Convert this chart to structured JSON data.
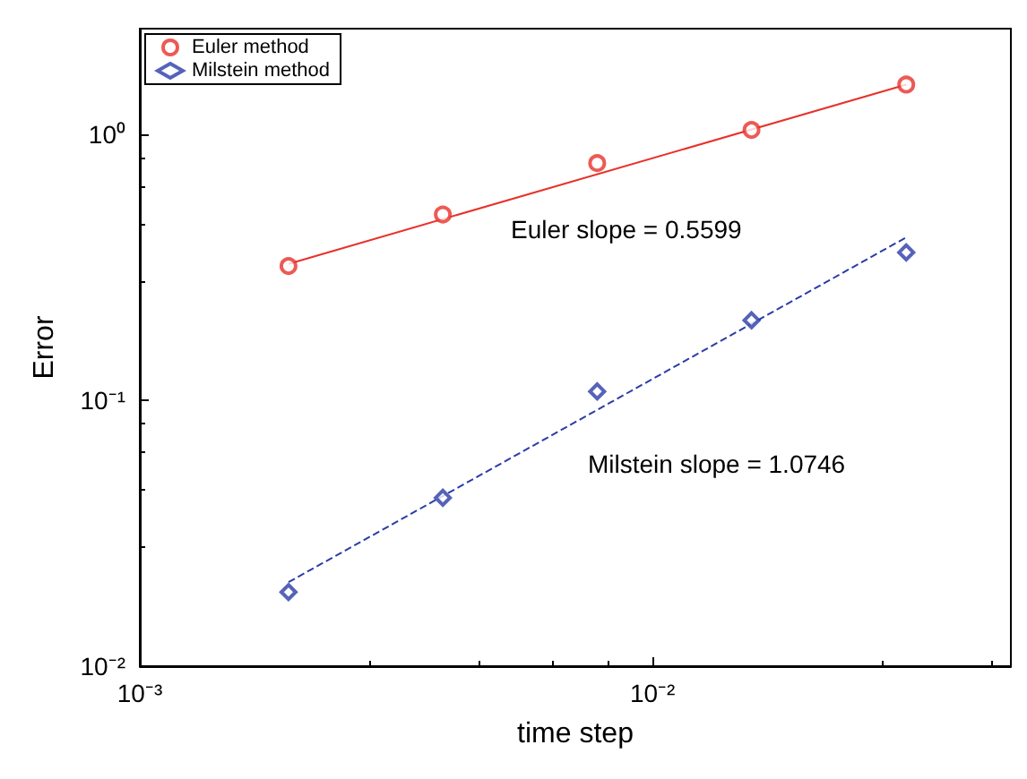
{
  "chart_data": {
    "type": "scatter",
    "xlabel": "time step",
    "ylabel": "Error",
    "log": "xy",
    "grid": false,
    "legend": "top left",
    "xlim": [
      0.001,
      0.05
    ],
    "xticks": [
      {
        "value": 0.001,
        "label": "10⁻³"
      },
      {
        "value": 0.01,
        "label": "10⁻²"
      }
    ],
    "ylim": [
      0.01,
      2.5
    ],
    "yticks": [
      {
        "value": 0.01,
        "label": "10⁻²"
      },
      {
        "value": 0.1,
        "label": "10⁻¹"
      },
      {
        "value": 1,
        "label": "10⁰"
      }
    ],
    "series": [
      {
        "name": "Euler method",
        "marker": "circle",
        "color": "#e8312a",
        "x": [
          0.00195,
          0.0039,
          0.0078,
          0.0156,
          0.03125
        ],
        "values": [
          0.32,
          0.5,
          0.78,
          1.04,
          1.54
        ]
      },
      {
        "type": "line",
        "marker": "none",
        "line_style": "solid",
        "color": "#e8312a",
        "x": [
          0.00195,
          0.03125
        ],
        "values": [
          0.326,
          1.54
        ]
      },
      {
        "name": "Milstein method",
        "marker": "diamond",
        "color": "#2a3ca8",
        "x": [
          0.00195,
          0.0039,
          0.0078,
          0.0156,
          0.03125
        ],
        "values": [
          0.019,
          0.043,
          0.108,
          0.2,
          0.36
        ]
      },
      {
        "type": "line",
        "marker": "none",
        "line_style": "dashed",
        "color": "#2a3ca8",
        "x": [
          0.00195,
          0.03125
        ],
        "values": [
          0.0207,
          0.41
        ]
      }
    ],
    "annotations": [
      "Euler slope = 0.5599",
      "Milstein slope = 1.0746"
    ]
  }
}
